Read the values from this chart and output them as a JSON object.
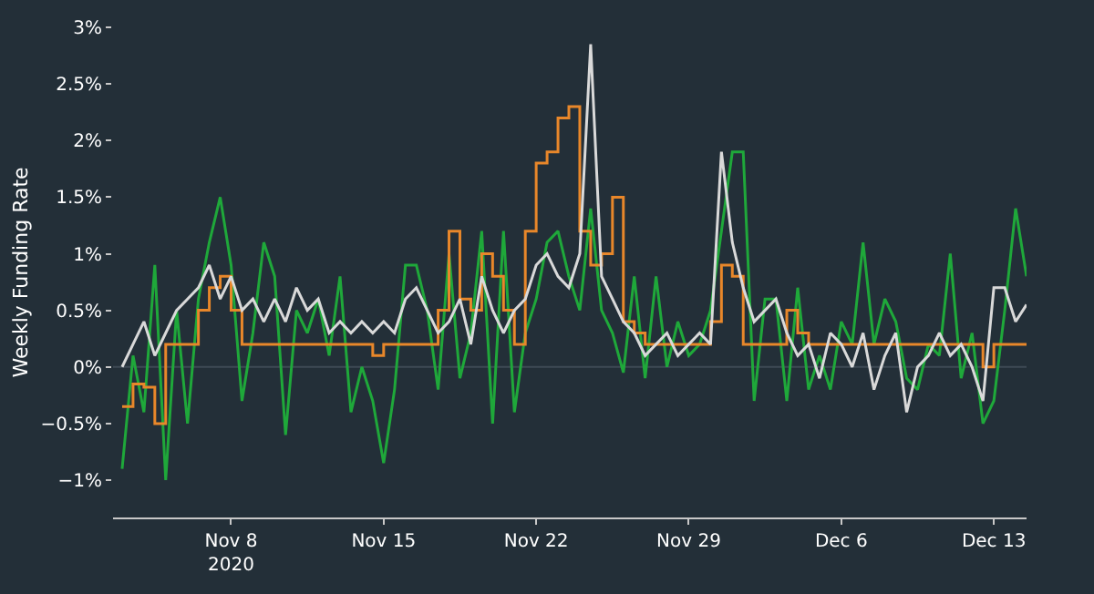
{
  "chart_data": {
    "type": "line",
    "ylabel": "Weekly Funding Rate",
    "x": [
      "2020-11-03T00:00",
      "2020-11-03T12:00",
      "2020-11-04T00:00",
      "2020-11-04T12:00",
      "2020-11-05T00:00",
      "2020-11-05T12:00",
      "2020-11-06T00:00",
      "2020-11-06T12:00",
      "2020-11-07T00:00",
      "2020-11-07T12:00",
      "2020-11-08T00:00",
      "2020-11-08T12:00",
      "2020-11-09T00:00",
      "2020-11-09T12:00",
      "2020-11-10T00:00",
      "2020-11-10T12:00",
      "2020-11-11T00:00",
      "2020-11-11T12:00",
      "2020-11-12T00:00",
      "2020-11-12T12:00",
      "2020-11-13T00:00",
      "2020-11-13T12:00",
      "2020-11-14T00:00",
      "2020-11-14T12:00",
      "2020-11-15T00:00",
      "2020-11-15T12:00",
      "2020-11-16T00:00",
      "2020-11-16T12:00",
      "2020-11-17T00:00",
      "2020-11-17T12:00",
      "2020-11-18T00:00",
      "2020-11-18T12:00",
      "2020-11-19T00:00",
      "2020-11-19T12:00",
      "2020-11-20T00:00",
      "2020-11-20T12:00",
      "2020-11-21T00:00",
      "2020-11-21T12:00",
      "2020-11-22T00:00",
      "2020-11-22T12:00",
      "2020-11-23T00:00",
      "2020-11-23T12:00",
      "2020-11-24T00:00",
      "2020-11-24T12:00",
      "2020-11-25T00:00",
      "2020-11-25T12:00",
      "2020-11-26T00:00",
      "2020-11-26T12:00",
      "2020-11-27T00:00",
      "2020-11-27T12:00",
      "2020-11-28T00:00",
      "2020-11-28T12:00",
      "2020-11-29T00:00",
      "2020-11-29T12:00",
      "2020-11-30T00:00",
      "2020-11-30T12:00",
      "2020-12-01T00:00",
      "2020-12-01T12:00",
      "2020-12-02T00:00",
      "2020-12-02T12:00",
      "2020-12-03T00:00",
      "2020-12-03T12:00",
      "2020-12-04T00:00",
      "2020-12-04T12:00",
      "2020-12-05T00:00",
      "2020-12-05T12:00",
      "2020-12-06T00:00",
      "2020-12-06T12:00",
      "2020-12-07T00:00",
      "2020-12-07T12:00",
      "2020-12-08T00:00",
      "2020-12-08T12:00",
      "2020-12-09T00:00",
      "2020-12-09T12:00",
      "2020-12-10T00:00",
      "2020-12-10T12:00",
      "2020-12-11T00:00",
      "2020-12-11T12:00",
      "2020-12-12T00:00",
      "2020-12-12T12:00",
      "2020-12-13T00:00",
      "2020-12-13T12:00",
      "2020-12-14T00:00",
      "2020-12-14T12:00"
    ],
    "series": [
      {
        "color": "#1fa83a",
        "values": [
          -0.9,
          0.1,
          -0.4,
          0.9,
          -1.0,
          0.5,
          -0.5,
          0.6,
          1.1,
          1.5,
          0.9,
          -0.3,
          0.3,
          1.1,
          0.8,
          -0.6,
          0.5,
          0.3,
          0.6,
          0.1,
          0.8,
          -0.4,
          0.0,
          -0.3,
          -0.85,
          -0.2,
          0.9,
          0.9,
          0.5,
          -0.2,
          1.0,
          -0.1,
          0.3,
          1.2,
          -0.5,
          1.2,
          -0.4,
          0.3,
          0.6,
          1.1,
          1.2,
          0.8,
          0.5,
          1.4,
          0.5,
          0.3,
          -0.05,
          0.8,
          -0.1,
          0.8,
          0.0,
          0.4,
          0.1,
          0.2,
          0.5,
          1.2,
          1.9,
          1.9,
          -0.3,
          0.6,
          0.6,
          -0.3,
          0.7,
          -0.2,
          0.1,
          -0.2,
          0.4,
          0.2,
          1.1,
          0.2,
          0.6,
          0.4,
          -0.1,
          -0.2,
          0.2,
          0.1,
          1.0,
          -0.1,
          0.3,
          -0.5,
          -0.3,
          0.5,
          1.4,
          0.8
        ]
      },
      {
        "type": "step",
        "color": "#e8872a",
        "values": [
          -0.35,
          -0.15,
          -0.18,
          -0.5,
          0.2,
          0.2,
          0.2,
          0.5,
          0.7,
          0.8,
          0.5,
          0.2,
          0.2,
          0.2,
          0.2,
          0.2,
          0.2,
          0.2,
          0.2,
          0.2,
          0.2,
          0.2,
          0.2,
          0.1,
          0.2,
          0.2,
          0.2,
          0.2,
          0.2,
          0.5,
          1.2,
          0.6,
          0.5,
          1.0,
          0.8,
          0.5,
          0.2,
          1.2,
          1.8,
          1.9,
          2.2,
          2.3,
          1.2,
          0.9,
          1.0,
          1.5,
          0.4,
          0.3,
          0.2,
          0.2,
          0.2,
          0.2,
          0.2,
          0.2,
          0.4,
          0.9,
          0.8,
          0.2,
          0.2,
          0.2,
          0.2,
          0.5,
          0.3,
          0.2,
          0.2,
          0.2,
          0.2,
          0.2,
          0.2,
          0.2,
          0.2,
          0.2,
          0.2,
          0.2,
          0.2,
          0.2,
          0.2,
          0.2,
          0.2,
          0.0,
          0.2,
          0.2,
          0.2,
          0.2
        ]
      },
      {
        "color": "#d9d9d9",
        "values": [
          0.0,
          0.2,
          0.4,
          0.1,
          0.3,
          0.5,
          0.6,
          0.7,
          0.9,
          0.6,
          0.8,
          0.5,
          0.6,
          0.4,
          0.6,
          0.4,
          0.7,
          0.5,
          0.6,
          0.3,
          0.4,
          0.3,
          0.4,
          0.3,
          0.4,
          0.3,
          0.6,
          0.7,
          0.5,
          0.3,
          0.4,
          0.6,
          0.2,
          0.8,
          0.5,
          0.3,
          0.5,
          0.6,
          0.9,
          1.0,
          0.8,
          0.7,
          1.0,
          2.85,
          0.8,
          0.6,
          0.4,
          0.3,
          0.1,
          0.2,
          0.3,
          0.1,
          0.2,
          0.3,
          0.2,
          1.9,
          1.1,
          0.7,
          0.4,
          0.5,
          0.6,
          0.3,
          0.1,
          0.2,
          -0.1,
          0.3,
          0.2,
          0.0,
          0.3,
          -0.2,
          0.1,
          0.3,
          -0.4,
          0.0,
          0.1,
          0.3,
          0.1,
          0.2,
          0.0,
          -0.3,
          0.7,
          0.7,
          0.4,
          0.55
        ]
      }
    ],
    "xlim": [
      "2020-11-02T14:00",
      "2020-12-14T12:00"
    ],
    "xticks": [
      {
        "value": "2020-11-08",
        "label": "Nov 8\n2020"
      },
      {
        "value": "2020-11-15",
        "label": "Nov 15"
      },
      {
        "value": "2020-11-22",
        "label": "Nov 22"
      },
      {
        "value": "2020-11-29",
        "label": "Nov 29"
      },
      {
        "value": "2020-12-06",
        "label": "Dec 6"
      },
      {
        "value": "2020-12-13",
        "label": "Dec 13"
      }
    ],
    "ylim": [
      -1.33,
      3
    ],
    "yticks": [
      {
        "value": -1,
        "label": "−1%"
      },
      {
        "value": -0.5,
        "label": "−0.5%"
      },
      {
        "value": 0,
        "label": "0%"
      },
      {
        "value": 0.5,
        "label": "0.5%"
      },
      {
        "value": 1,
        "label": "1%"
      },
      {
        "value": 1.5,
        "label": "1.5%"
      },
      {
        "value": 2,
        "label": "2%"
      },
      {
        "value": 2.5,
        "label": "2.5%"
      },
      {
        "value": 3,
        "label": "3%"
      }
    ],
    "ref_lines": [
      {
        "axis": "y",
        "value": 0,
        "color": "#3e4a54"
      }
    ]
  }
}
